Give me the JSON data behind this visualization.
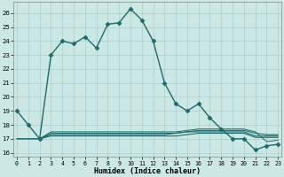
{
  "xlabel": "Humidex (Indice chaleur)",
  "bg_color": "#cce8e4",
  "grid_color": "#aacfcc",
  "line_color": "#1a6b6b",
  "x_ticks": [
    0,
    1,
    2,
    3,
    4,
    5,
    6,
    7,
    8,
    9,
    10,
    11,
    12,
    13,
    14,
    15,
    16,
    17,
    18,
    19,
    20,
    21,
    22,
    23
  ],
  "y_ticks": [
    16,
    17,
    18,
    19,
    20,
    21,
    22,
    23,
    24,
    25,
    26
  ],
  "xlim": [
    -0.3,
    23.3
  ],
  "ylim": [
    15.7,
    26.8
  ],
  "series": [
    {
      "x": [
        0,
        1,
        2,
        3,
        4,
        5,
        6,
        7,
        8,
        9,
        10,
        11,
        12,
        13,
        14,
        15,
        16,
        17,
        18,
        19,
        20,
        21,
        22,
        23
      ],
      "y": [
        19,
        18,
        17,
        23,
        24,
        23.8,
        24.3,
        23.5,
        25.2,
        25.3,
        26.3,
        25.5,
        24,
        21,
        19.5,
        19,
        19.5,
        18.5,
        17.7,
        17,
        17,
        16.2,
        16.5,
        16.6
      ],
      "marker": "D",
      "markersize": 2.5,
      "linewidth": 1.0,
      "color": "#1a6b6b"
    },
    {
      "x": [
        0,
        1,
        2,
        3,
        4,
        5,
        6,
        7,
        8,
        9,
        10,
        11,
        12,
        13,
        14,
        15,
        16,
        17,
        18,
        19,
        20,
        21,
        22,
        23
      ],
      "y": [
        17.0,
        17.0,
        17.0,
        17.2,
        17.2,
        17.2,
        17.2,
        17.2,
        17.2,
        17.2,
        17.2,
        17.2,
        17.2,
        17.2,
        17.2,
        17.3,
        17.4,
        17.4,
        17.4,
        17.4,
        17.4,
        17.1,
        17.1,
        17.1
      ],
      "marker": null,
      "linewidth": 0.8,
      "color": "#1a6b6b"
    },
    {
      "x": [
        0,
        1,
        2,
        3,
        4,
        5,
        6,
        7,
        8,
        9,
        10,
        11,
        12,
        13,
        14,
        15,
        16,
        17,
        18,
        19,
        20,
        21,
        22,
        23
      ],
      "y": [
        17.0,
        17.0,
        17.0,
        17.3,
        17.3,
        17.3,
        17.3,
        17.3,
        17.3,
        17.3,
        17.3,
        17.3,
        17.3,
        17.3,
        17.4,
        17.5,
        17.5,
        17.5,
        17.5,
        17.5,
        17.5,
        17.2,
        17.2,
        17.2
      ],
      "marker": null,
      "linewidth": 0.8,
      "color": "#1a6b6b"
    },
    {
      "x": [
        2,
        3,
        4,
        5,
        6,
        7,
        8,
        9,
        10,
        11,
        12,
        13,
        14,
        15,
        16,
        17,
        18,
        19,
        20,
        21,
        22,
        23
      ],
      "y": [
        17.0,
        17.4,
        17.4,
        17.4,
        17.4,
        17.4,
        17.4,
        17.4,
        17.4,
        17.4,
        17.4,
        17.4,
        17.4,
        17.5,
        17.6,
        17.6,
        17.6,
        17.6,
        17.6,
        17.4,
        17.3,
        17.3
      ],
      "marker": null,
      "linewidth": 0.8,
      "color": "#1a6b6b"
    },
    {
      "x": [
        2,
        3,
        4,
        5,
        6,
        7,
        8,
        9,
        10,
        11,
        12,
        13,
        14,
        15,
        16,
        17,
        18,
        19,
        20,
        21,
        22,
        23
      ],
      "y": [
        17.0,
        17.5,
        17.5,
        17.5,
        17.5,
        17.5,
        17.5,
        17.5,
        17.5,
        17.5,
        17.5,
        17.5,
        17.5,
        17.6,
        17.7,
        17.7,
        17.7,
        17.7,
        17.7,
        17.5,
        16.8,
        16.9
      ],
      "marker": null,
      "linewidth": 0.7,
      "color": "#1a6b6b"
    }
  ]
}
